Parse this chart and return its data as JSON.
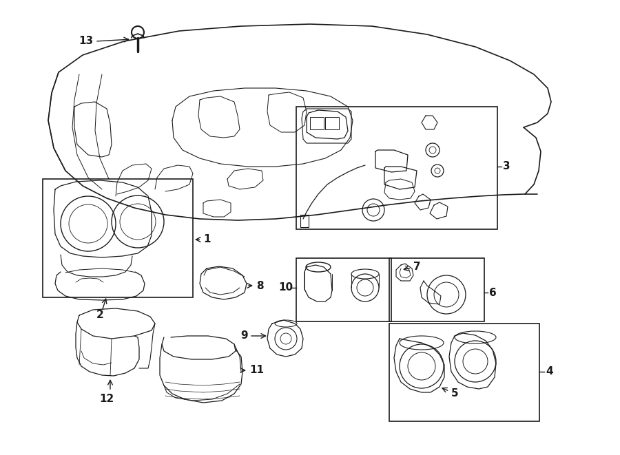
{
  "bg_color": "#ffffff",
  "line_color": "#1a1a1a",
  "fig_width": 9.0,
  "fig_height": 6.61,
  "dpi": 100,
  "lw": 1.0,
  "label_fontsize": 11
}
